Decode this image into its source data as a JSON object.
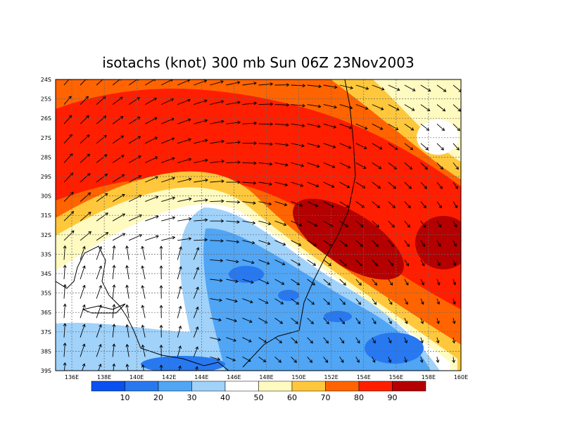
{
  "title": "isotachs (knot) 300 mb Sun 06Z 23Nov2003",
  "lat_labels": [
    "24S",
    "25S",
    "26S",
    "27S",
    "28S",
    "29S",
    "30S",
    "31S",
    "32S",
    "33S",
    "34S",
    "35S",
    "36S",
    "37S",
    "38S",
    "39S"
  ],
  "lon_labels": [
    "136E",
    "138E",
    "140E",
    "142E",
    "144E",
    "146E",
    "148E",
    "150E",
    "152E",
    "154E",
    "156E",
    "158E",
    "160E"
  ],
  "colorbar": {
    "colors": [
      "#0a50f0",
      "#2878f0",
      "#50a5f5",
      "#a0d2fa",
      "#ffffff",
      "#fffac0",
      "#ffc83c",
      "#ff6400",
      "#ff1e00",
      "#b40000"
    ],
    "labels": [
      "10",
      "20",
      "30",
      "40",
      "50",
      "60",
      "70",
      "80",
      "90"
    ]
  }
}
